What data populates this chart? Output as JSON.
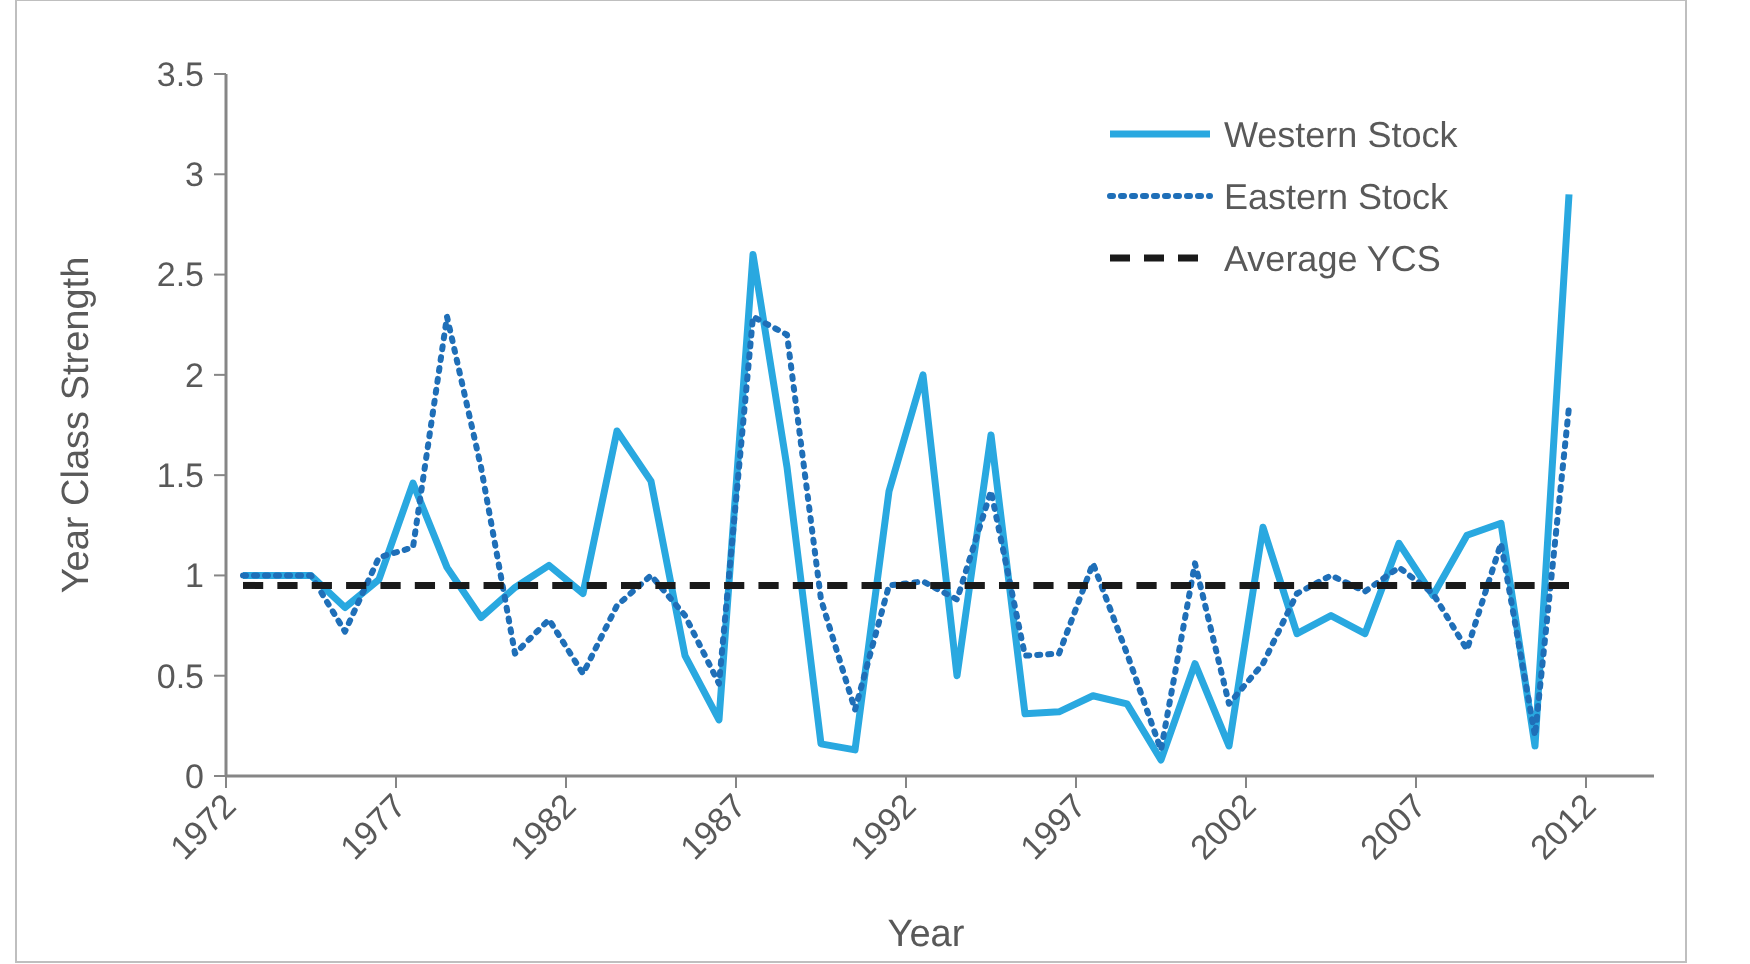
{
  "chart_data": {
    "type": "line",
    "xlabel": "Year",
    "ylabel": "Year Class Strength",
    "x": [
      1972.5,
      1973.5,
      1974.5,
      1975.5,
      1976.5,
      1977.5,
      1978.5,
      1979.5,
      1980.5,
      1981.5,
      1982.5,
      1983.5,
      1984.5,
      1985.5,
      1986.5,
      1987.5,
      1988.5,
      1989.5,
      1990.5,
      1991.5,
      1992.5,
      1993.5,
      1994.5,
      1995.5,
      1996.5,
      1997.5,
      1998.5,
      1999.5,
      2000.5,
      2001.5,
      2002.5,
      2003.5,
      2004.5,
      2005.5,
      2006.5,
      2007.5,
      2008.5,
      2009.5,
      2010.5,
      2011.5
    ],
    "series": [
      {
        "name": "Western Stock",
        "color": "#29a8e0",
        "line_style": "solid",
        "values": [
          1.0,
          1.0,
          1.0,
          0.84,
          0.98,
          1.46,
          1.04,
          0.79,
          0.94,
          1.05,
          0.91,
          1.72,
          1.47,
          0.6,
          0.28,
          2.6,
          1.54,
          0.16,
          0.13,
          1.42,
          2.0,
          0.5,
          1.7,
          0.31,
          0.32,
          0.4,
          0.36,
          0.08,
          0.56,
          0.15,
          1.24,
          0.71,
          0.8,
          0.71,
          1.16,
          0.9,
          1.2,
          1.26,
          0.15,
          2.9
        ]
      },
      {
        "name": "Eastern Stock",
        "color": "#1f6fb8",
        "line_style": "dotted",
        "values": [
          1.0,
          1.0,
          1.0,
          0.72,
          1.09,
          1.14,
          2.29,
          1.54,
          0.61,
          0.78,
          0.51,
          0.85,
          1.0,
          0.8,
          0.46,
          2.29,
          2.2,
          0.88,
          0.33,
          0.95,
          0.97,
          0.88,
          1.42,
          0.6,
          0.61,
          1.06,
          0.61,
          0.13,
          1.06,
          0.36,
          0.56,
          0.91,
          1.0,
          0.92,
          1.04,
          0.91,
          0.63,
          1.16,
          0.2,
          1.84
        ]
      },
      {
        "name": "Average YCS",
        "color": "#1a1a1a",
        "line_style": "dashed",
        "x": [
          1972.5,
          2011.5
        ],
        "values": [
          0.95,
          0.95
        ]
      }
    ],
    "xlim": [
      1972,
      2014
    ],
    "xticks": [
      1972,
      1977,
      1982,
      1987,
      1992,
      1997,
      2002,
      2007,
      2012
    ],
    "ylim": [
      0,
      3.5
    ],
    "yticks": [
      {
        "value": 0,
        "label": "0"
      },
      {
        "value": 0.5,
        "label": "0.5"
      },
      {
        "value": 1,
        "label": "1"
      },
      {
        "value": 1.5,
        "label": "1.5"
      },
      {
        "value": 2,
        "label": "2"
      },
      {
        "value": 2.5,
        "label": "2.5"
      },
      {
        "value": 3,
        "label": "3"
      },
      {
        "value": 3.5,
        "label": "3.5"
      }
    ],
    "grid": false,
    "legend": "top right"
  }
}
